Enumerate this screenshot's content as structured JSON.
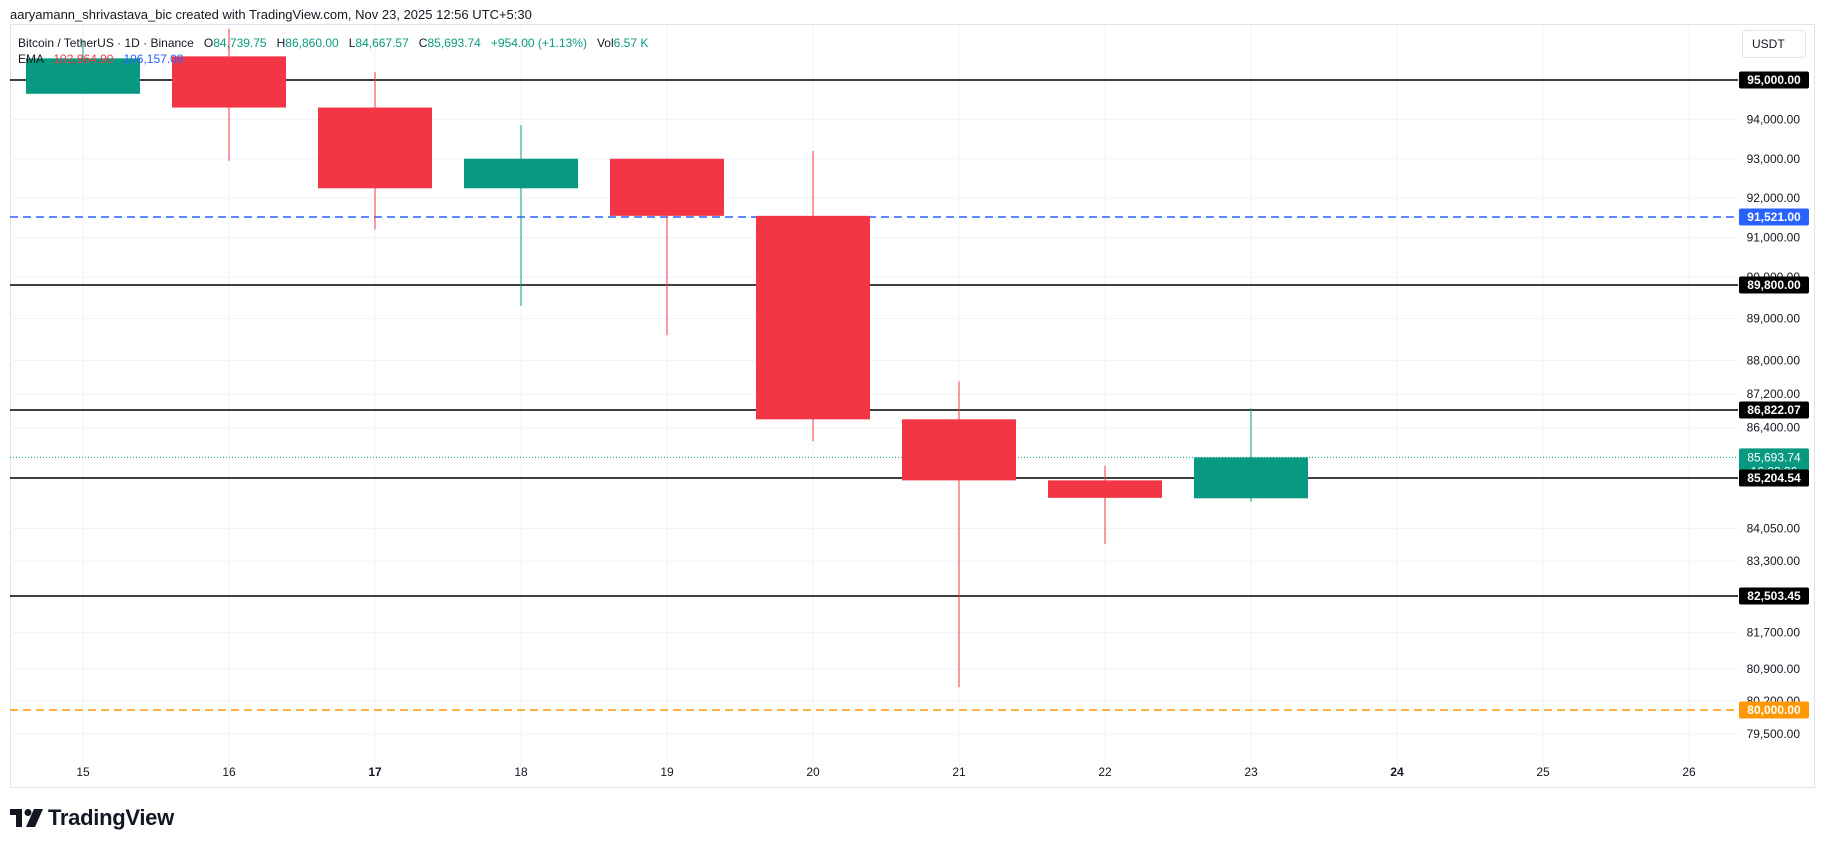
{
  "attribution": "aaryamann_shrivastava_bic created with TradingView.com, Nov 23, 2025 12:56 UTC+5:30",
  "legend": {
    "symbol": "Bitcoin / TetherUS · 1D · Binance",
    "o_label": "O",
    "o_value": "84,739.75",
    "h_label": "H",
    "h_value": "86,860.00",
    "l_label": "L",
    "l_value": "84,667.57",
    "c_label": "C",
    "c_value": "85,693.74",
    "change": "+954.00 (+1.13%)",
    "vol_label": "Vol",
    "vol_value": "6.57 K",
    "ema_label": "EMA",
    "ema_value_1": "102,864.90",
    "ema_value_2": "106,157.08"
  },
  "currency": "USDT",
  "brand": "TradingView",
  "colors": {
    "up": "#089981",
    "down": "#f23645",
    "blue_line": "#2962ff",
    "orange_line": "#ff9800",
    "level_line": "#000000",
    "grid": "#f0f3fa"
  },
  "chart_data": {
    "type": "candlestick",
    "x_ticks": [
      "15",
      "16",
      "17",
      "18",
      "19",
      "20",
      "21",
      "22",
      "23",
      "24",
      "25",
      "26"
    ],
    "candles": [
      {
        "day": "15",
        "open": 94650,
        "high": 96000,
        "low": 94650,
        "close": 95550
      },
      {
        "day": "16",
        "open": 95600,
        "high": 96300,
        "low": 92950,
        "close": 94300
      },
      {
        "day": "17",
        "open": 94300,
        "high": 95200,
        "low": 91200,
        "close": 92250
      },
      {
        "day": "18",
        "open": 92250,
        "high": 93850,
        "low": 89300,
        "close": 93000
      },
      {
        "day": "19",
        "open": 93000,
        "high": 93000,
        "low": 88600,
        "close": 91550
      },
      {
        "day": "20",
        "open": 91550,
        "high": 93200,
        "low": 86080,
        "close": 86600
      },
      {
        "day": "21",
        "open": 86600,
        "high": 87500,
        "low": 80500,
        "close": 85150
      },
      {
        "day": "22",
        "open": 85150,
        "high": 85500,
        "low": 83700,
        "close": 84750
      },
      {
        "day": "23",
        "open": 84739.75,
        "high": 86860.0,
        "low": 84667.57,
        "close": 85693.74
      }
    ],
    "y_ticks": [
      "94,000.00",
      "93,000.00",
      "92,000.00",
      "91,000.00",
      "90,000.00",
      "89,000.00",
      "88,000.00",
      "87,200.00",
      "86,400.00",
      "84,050.00",
      "83,300.00",
      "81,700.00",
      "80,900.00",
      "80,200.00",
      "79,500.00"
    ],
    "horizontal_levels": [
      {
        "value": 95000.0,
        "label": "95,000.00",
        "style": "solid",
        "color": "#000000"
      },
      {
        "value": 91521.0,
        "label": "91,521.00",
        "style": "dashed",
        "color": "#2962ff"
      },
      {
        "value": 89800.0,
        "label": "89,800.00",
        "style": "solid",
        "color": "#000000"
      },
      {
        "value": 86822.07,
        "label": "86,822.07",
        "style": "solid",
        "color": "#000000"
      },
      {
        "value": 85204.54,
        "label": "85,204.54",
        "style": "solid",
        "color": "#000000"
      },
      {
        "value": 82503.45,
        "label": "82,503.45",
        "style": "solid",
        "color": "#000000"
      },
      {
        "value": 80000.0,
        "label": "80,000.00",
        "style": "dashed",
        "color": "#ff9800"
      }
    ],
    "last_price": {
      "value": 85693.74,
      "label": "85,693.74",
      "countdown": "16:33:36"
    }
  }
}
